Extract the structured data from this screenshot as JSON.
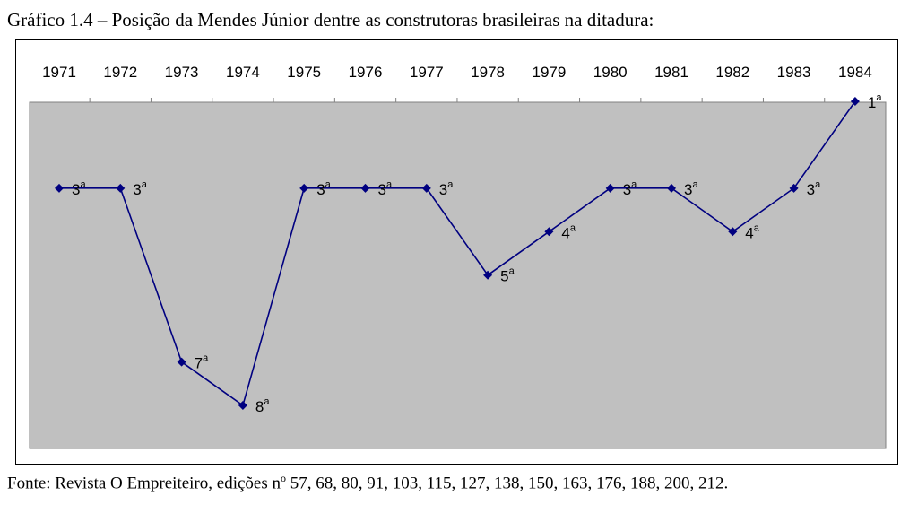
{
  "caption": {
    "title": "Gráfico 1.4 – Posição da Mendes Júnior dentre as construtoras brasileiras na ditadura:",
    "source_prefix": "Fonte: Revista O Empreiteiro, edições n",
    "source_sup": "o",
    "source_suffix": " 57, 68, 80, 91, 103, 115, 127, 138, 150, 163, 176, 188, 200, 212."
  },
  "colors": {
    "plot_background": "#c0c0c0",
    "line": "#000080",
    "marker": "#000080"
  },
  "chart_data": {
    "type": "line",
    "x": [
      "1971",
      "1972",
      "1973",
      "1974",
      "1975",
      "1976",
      "1977",
      "1978",
      "1979",
      "1980",
      "1981",
      "1982",
      "1983",
      "1984"
    ],
    "series": [
      {
        "values": [
          3,
          3,
          7,
          8,
          3,
          3,
          3,
          5,
          4,
          3,
          3,
          4,
          3,
          1
        ],
        "labels": [
          "3",
          "3",
          "7",
          "8",
          "3",
          "3",
          "3",
          "5",
          "4",
          "3",
          "3",
          "4",
          "3",
          "1"
        ],
        "label_suffix": "a"
      }
    ],
    "y_axis": {
      "reversed": true,
      "ylim": [
        1,
        8
      ]
    },
    "x_axis_position": "top",
    "grid": false,
    "legend": "none"
  }
}
